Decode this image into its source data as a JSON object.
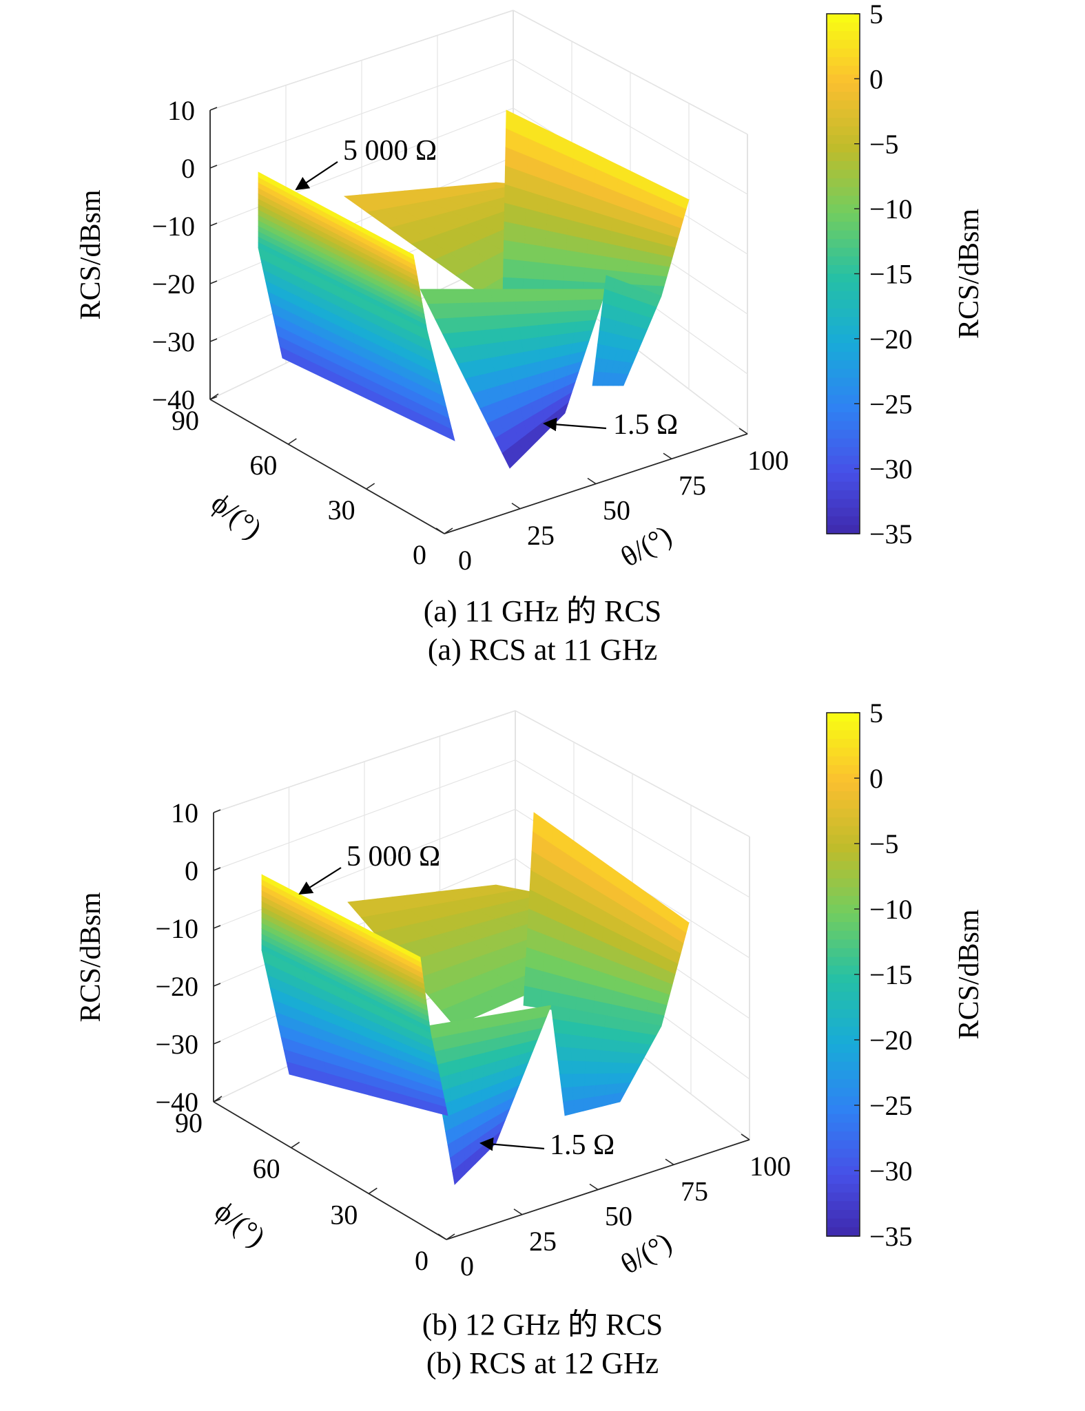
{
  "chart_data": [
    {
      "type": "surface3d",
      "caption_zh": "(a) 11 GHz 的 RCS",
      "caption_en": "(a) RCS at 11 GHz",
      "zlabel": "RCS/dBsm",
      "xlabel": "θ/(°)",
      "ylabel": "ϕ/(°)",
      "colorbar_label": "RCS/dBsm",
      "z_ticks": [
        "10",
        "0",
        "−10",
        "−20",
        "−30",
        "−40"
      ],
      "z_tick_values": [
        10,
        0,
        -10,
        -20,
        -30,
        -40
      ],
      "zlim": [
        -40,
        10
      ],
      "theta_ticks": [
        "0",
        "25",
        "50",
        "75",
        "100"
      ],
      "theta_tick_values": [
        0,
        25,
        50,
        75,
        100
      ],
      "xlim": [
        0,
        100
      ],
      "phi_ticks": [
        "90",
        "60",
        "30",
        "0"
      ],
      "phi_tick_values": [
        90,
        60,
        30,
        0
      ],
      "ylim": [
        0,
        90
      ],
      "colorbar_ticks": [
        "5",
        "0",
        "−5",
        "−10",
        "−15",
        "−20",
        "−25",
        "−30",
        "−35"
      ],
      "colorbar_tick_values": [
        5,
        0,
        -5,
        -10,
        -15,
        -20,
        -25,
        -30,
        -35
      ],
      "clim": [
        -35,
        5
      ],
      "annotations": [
        {
          "text": "5 000 Ω",
          "target": "high-impedance-edge",
          "theta": 0,
          "phi": 90,
          "rcs": 5
        },
        {
          "text": "1.5 Ω",
          "target": "low-impedance-minimum",
          "theta": 30,
          "phi": 10,
          "rcs": -34
        }
      ],
      "surface": {
        "edge_rcs": [
          [
            0,
            5
          ],
          [
            30,
            -3
          ],
          [
            60,
            -10
          ],
          [
            90,
            -16
          ]
        ],
        "ridge_rcs": -1,
        "right_wall_rcs": 4,
        "minimum_rcs": -34
      }
    },
    {
      "type": "surface3d",
      "caption_zh": "(b) 12 GHz 的 RCS",
      "caption_en": "(b) RCS at 12 GHz",
      "zlabel": "RCS/dBsm",
      "xlabel": "θ/(°)",
      "ylabel": "ϕ/(°)",
      "colorbar_label": "RCS/dBsm",
      "z_ticks": [
        "10",
        "0",
        "−10",
        "−20",
        "−30",
        "−40"
      ],
      "z_tick_values": [
        10,
        0,
        -10,
        -20,
        -30,
        -40
      ],
      "zlim": [
        -40,
        10
      ],
      "theta_ticks": [
        "0",
        "25",
        "50",
        "75",
        "100"
      ],
      "theta_tick_values": [
        0,
        25,
        50,
        75,
        100
      ],
      "xlim": [
        0,
        100
      ],
      "phi_ticks": [
        "90",
        "60",
        "30",
        "0"
      ],
      "phi_tick_values": [
        90,
        60,
        30,
        0
      ],
      "ylim": [
        0,
        90
      ],
      "colorbar_ticks": [
        "5",
        "0",
        "−5",
        "−10",
        "−15",
        "−20",
        "−25",
        "−30",
        "−35"
      ],
      "colorbar_tick_values": [
        5,
        0,
        -5,
        -10,
        -15,
        -20,
        -25,
        -30,
        -35
      ],
      "clim": [
        -35,
        5
      ],
      "annotations": [
        {
          "text": "5 000 Ω",
          "target": "high-impedance-edge",
          "theta": 0,
          "phi": 90,
          "rcs": 5
        },
        {
          "text": "1.5 Ω",
          "target": "low-impedance-minimum",
          "theta": 0,
          "phi": 5,
          "rcs": -32
        }
      ],
      "surface": {
        "edge_rcs": [
          [
            0,
            5
          ],
          [
            30,
            -3
          ],
          [
            60,
            -10
          ],
          [
            90,
            -16
          ]
        ],
        "ridge_rcs": -3,
        "right_wall_rcs": 2,
        "minimum_rcs": -32
      }
    }
  ]
}
